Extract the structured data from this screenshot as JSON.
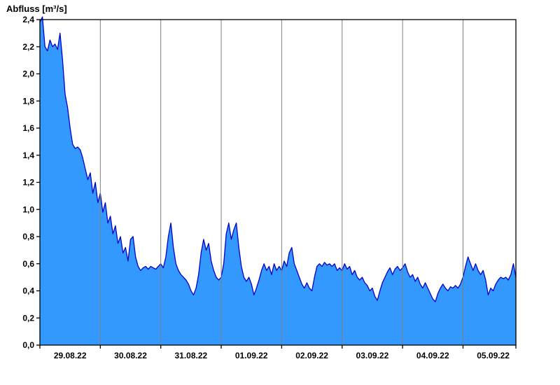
{
  "title": "Abfluss [m³/s]",
  "chart_data": {
    "type": "area",
    "title": "Abfluss [m³/s]",
    "ylabel": "Abfluss [m³/s]",
    "ylim": [
      0.0,
      2.4
    ],
    "ytick_step": 0.2,
    "ytick_labels": [
      "0,0",
      "0,2",
      "0,4",
      "0,6",
      "0,8",
      "1,0",
      "1,2",
      "1,4",
      "1,6",
      "1,8",
      "2,0",
      "2,2",
      "2,4"
    ],
    "x_day_labels": [
      "29.08.22",
      "30.08.22",
      "31.08.22",
      "01.09.22",
      "02.09.22",
      "03.09.22",
      "04.09.22",
      "05.09.22"
    ],
    "x_total_days": 7.875,
    "sampling": "hourly",
    "grid": true,
    "legend": "none",
    "fill_color": "#3399ff",
    "line_color": "#0000cc",
    "grid_color": "#7f7f7f",
    "axis_color": "#000000",
    "values": [
      2.38,
      2.42,
      2.2,
      2.17,
      2.25,
      2.2,
      2.22,
      2.18,
      2.3,
      2.1,
      1.85,
      1.75,
      1.6,
      1.48,
      1.45,
      1.46,
      1.44,
      1.38,
      1.3,
      1.22,
      1.27,
      1.12,
      1.2,
      1.05,
      1.12,
      0.98,
      1.05,
      0.9,
      0.95,
      0.82,
      0.88,
      0.75,
      0.8,
      0.68,
      0.72,
      0.62,
      0.78,
      0.8,
      0.65,
      0.58,
      0.55,
      0.57,
      0.58,
      0.56,
      0.58,
      0.57,
      0.56,
      0.58,
      0.6,
      0.57,
      0.65,
      0.8,
      0.9,
      0.72,
      0.6,
      0.55,
      0.52,
      0.5,
      0.48,
      0.45,
      0.4,
      0.37,
      0.42,
      0.52,
      0.68,
      0.78,
      0.7,
      0.75,
      0.62,
      0.55,
      0.5,
      0.48,
      0.5,
      0.6,
      0.82,
      0.9,
      0.78,
      0.85,
      0.9,
      0.72,
      0.58,
      0.5,
      0.47,
      0.5,
      0.45,
      0.37,
      0.42,
      0.48,
      0.55,
      0.6,
      0.55,
      0.58,
      0.52,
      0.6,
      0.55,
      0.58,
      0.55,
      0.62,
      0.58,
      0.68,
      0.72,
      0.6,
      0.55,
      0.5,
      0.45,
      0.42,
      0.46,
      0.42,
      0.4,
      0.5,
      0.58,
      0.6,
      0.58,
      0.61,
      0.59,
      0.6,
      0.58,
      0.6,
      0.55,
      0.57,
      0.55,
      0.6,
      0.56,
      0.58,
      0.52,
      0.55,
      0.5,
      0.48,
      0.5,
      0.46,
      0.44,
      0.4,
      0.42,
      0.36,
      0.33,
      0.4,
      0.46,
      0.5,
      0.54,
      0.57,
      0.52,
      0.56,
      0.58,
      0.55,
      0.57,
      0.6,
      0.54,
      0.5,
      0.52,
      0.47,
      0.5,
      0.45,
      0.42,
      0.46,
      0.42,
      0.38,
      0.34,
      0.32,
      0.38,
      0.42,
      0.45,
      0.42,
      0.4,
      0.43,
      0.42,
      0.44,
      0.42,
      0.45,
      0.5,
      0.58,
      0.65,
      0.6,
      0.55,
      0.6,
      0.55,
      0.52,
      0.55,
      0.48,
      0.37,
      0.42,
      0.4,
      0.45,
      0.48,
      0.5,
      0.49,
      0.5,
      0.48,
      0.52,
      0.6,
      0.5
    ]
  }
}
